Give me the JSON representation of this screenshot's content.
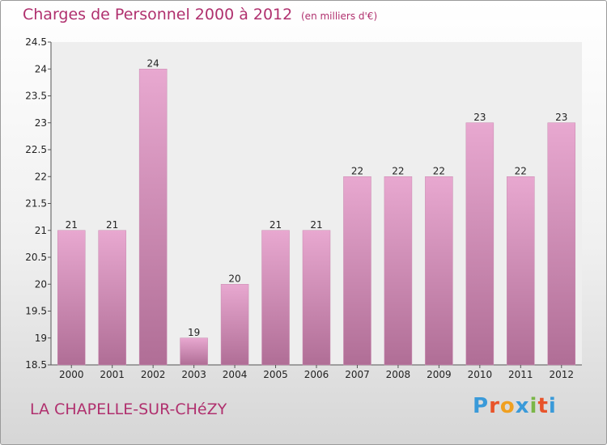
{
  "header": {
    "title": "Charges de Personnel 2000 à 2012",
    "subtitle": "(en milliers d'€)"
  },
  "footer": {
    "commune": "LA CHAPELLE-SUR-CHéZY",
    "logo": "Proxiti",
    "logo_letter_colors": [
      "#3a9ad9",
      "#e8532a",
      "#f0a020",
      "#3a9ad9",
      "#7ab648",
      "#e8532a",
      "#3a9ad9"
    ]
  },
  "colors": {
    "title": "#b0306e",
    "bar_top": "#e8a8d0",
    "bar_bottom": "#b06e96",
    "plot_bg": "#eeeeee",
    "axis": "#555555"
  },
  "chart_data": {
    "type": "bar",
    "title": "Charges de Personnel 2000 à 2012",
    "subtitle": "(en milliers d'€)",
    "categories": [
      "2000",
      "2001",
      "2002",
      "2003",
      "2004",
      "2005",
      "2006",
      "2007",
      "2008",
      "2009",
      "2010",
      "2011",
      "2012"
    ],
    "values": [
      21,
      21,
      24,
      19,
      20,
      21,
      21,
      22,
      22,
      22,
      23,
      22,
      23
    ],
    "value_labels": [
      "21",
      "21",
      "24",
      "19",
      "20",
      "21",
      "21",
      "22",
      "22",
      "22",
      "23",
      "22",
      "23"
    ],
    "ylim": [
      18.5,
      24.5
    ],
    "yticks": [
      18.5,
      19,
      19.5,
      20,
      20.5,
      21,
      21.5,
      22,
      22.5,
      23,
      23.5,
      24,
      24.5
    ],
    "ytick_labels": [
      "18.5",
      "19",
      "19.5",
      "20",
      "20.5",
      "21",
      "21.5",
      "22",
      "22.5",
      "23",
      "23.5",
      "24",
      "24.5"
    ],
    "xlabel": "",
    "ylabel": "",
    "grid": false,
    "legend": "none"
  }
}
